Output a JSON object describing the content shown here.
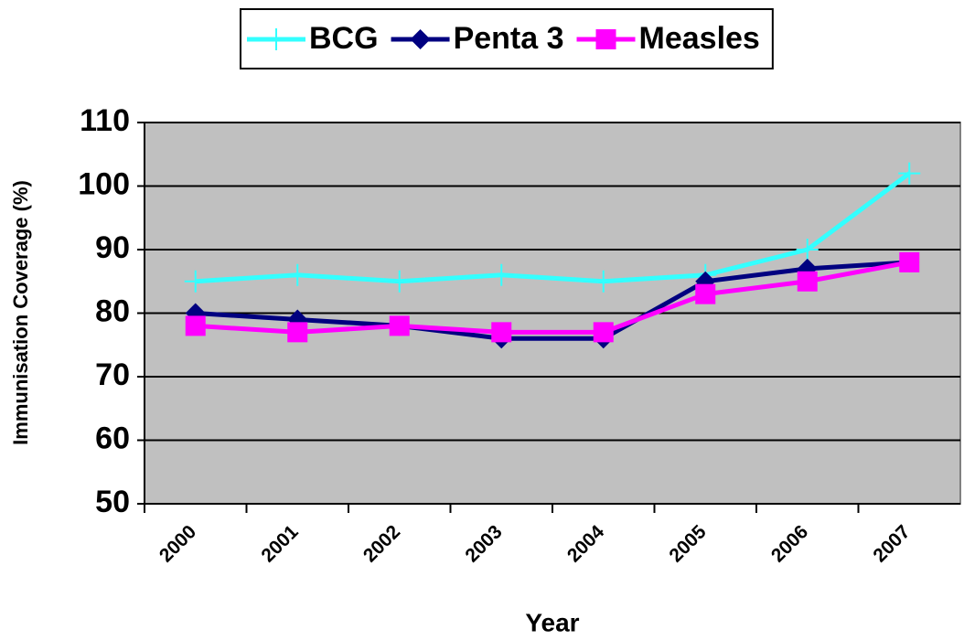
{
  "chart_data": {
    "type": "line",
    "x_label": "Year",
    "y_label": "Immunisation Coverage (%)",
    "categories": [
      "2000",
      "2001",
      "2002",
      "2003",
      "2004",
      "2005",
      "2006",
      "2007"
    ],
    "series": [
      {
        "name": "BCG",
        "color": "#33ffff",
        "marker": "plus",
        "values": [
          85,
          86,
          85,
          86,
          85,
          86,
          90,
          102
        ]
      },
      {
        "name": "Penta 3",
        "color": "#000080",
        "marker": "diamond",
        "values": [
          80,
          79,
          78,
          76,
          76,
          85,
          87,
          88
        ]
      },
      {
        "name": "Measles",
        "color": "#ff00ff",
        "marker": "square",
        "values": [
          78,
          77,
          78,
          77,
          77,
          83,
          85,
          88
        ]
      }
    ],
    "ylim": [
      50,
      110
    ],
    "yticks": [
      50,
      60,
      70,
      80,
      90,
      100,
      110
    ],
    "grid": true
  }
}
